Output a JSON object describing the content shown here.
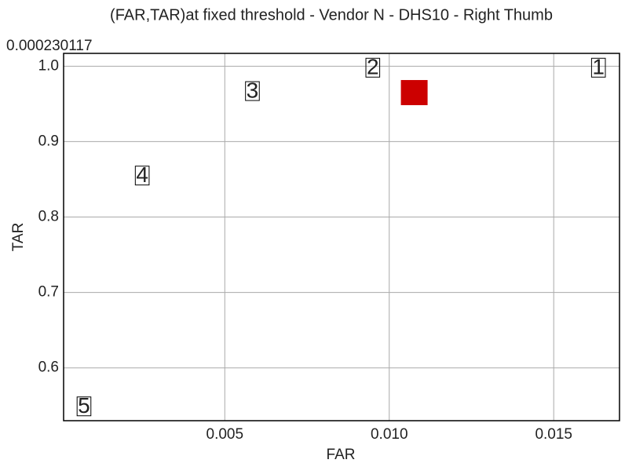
{
  "chart_data": {
    "type": "scatter",
    "title": "(FAR,TAR)at fixed threshold - Vendor N - DHS10 - Right Thumb",
    "annotation": "0.000230117",
    "xlabel": "FAR",
    "ylabel": "TAR",
    "xlim": [
      0.0001,
      0.017
    ],
    "ylim": [
      0.53,
      1.017
    ],
    "xticks": [
      0.005,
      {
        "value": 0.01,
        "label": "0.010"
      },
      0.015
    ],
    "yticks": [
      0.6,
      0.7,
      0.8,
      0.9,
      {
        "value": 1,
        "label": "1.0"
      }
    ],
    "grid": true,
    "series": [
      {
        "x": [
          0.01636,
          0.0095,
          0.00584,
          0.00249,
          0.00072
        ],
        "values": [
          0.998,
          0.998,
          0.967,
          0.855,
          0.549
        ],
        "point_labels": [
          "1",
          "2",
          "3",
          "4",
          "5"
        ],
        "color": "#000000"
      },
      {
        "x": [
          0.01076
        ],
        "values": [
          0.965
        ],
        "color": "#cc0000"
      }
    ]
  }
}
